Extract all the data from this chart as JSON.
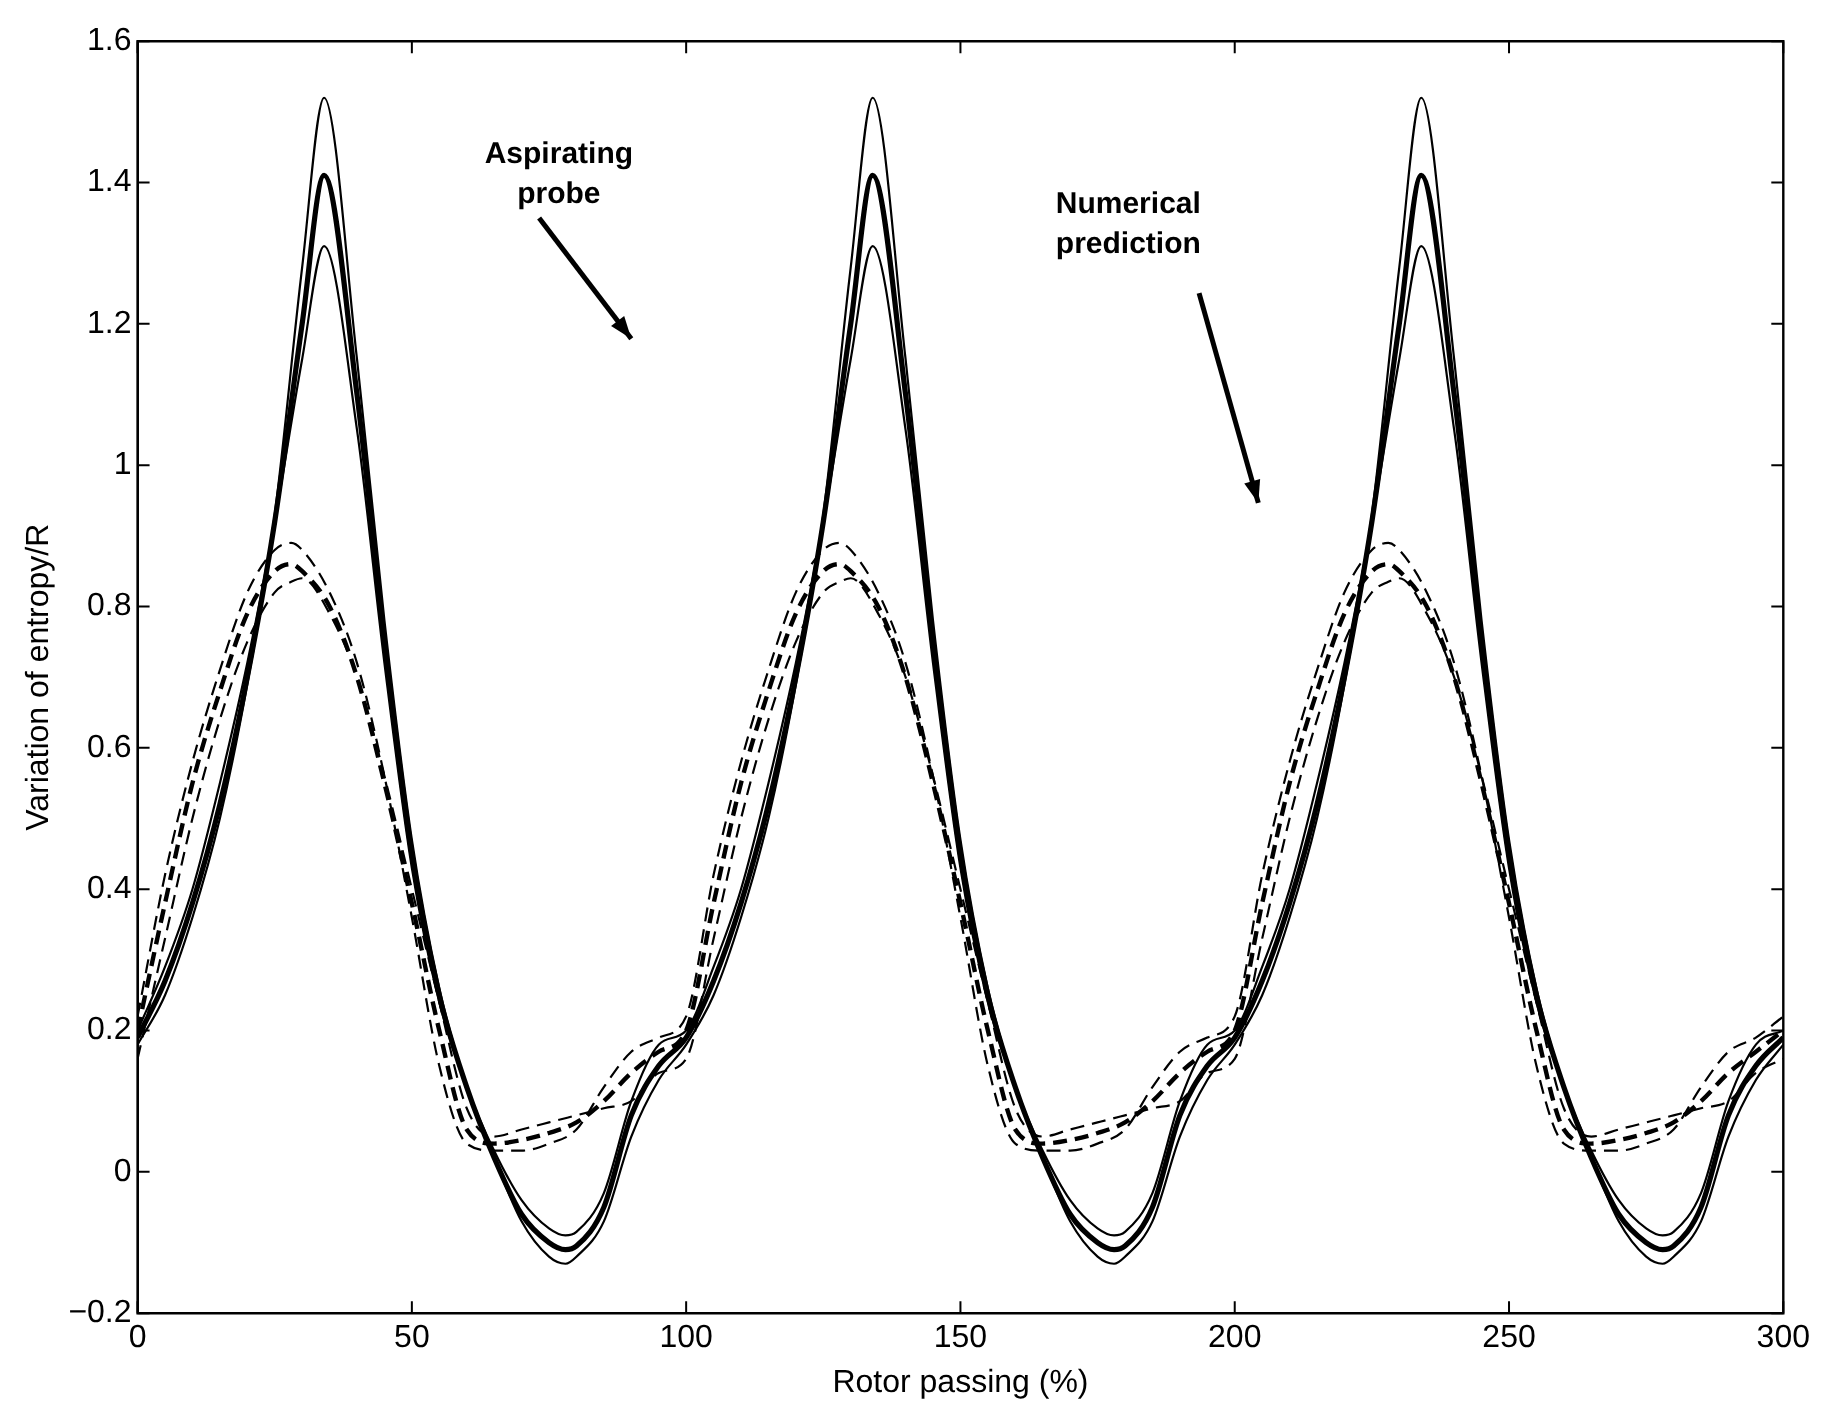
{
  "chart_data": {
    "type": "line",
    "xlabel": "Rotor passing (%)",
    "ylabel": "Variation of entropy/R",
    "xlim": [
      0,
      300
    ],
    "ylim": [
      -0.2,
      1.6
    ],
    "xticks": [
      0,
      50,
      100,
      150,
      200,
      250,
      300
    ],
    "yticks": [
      -0.2,
      0,
      0.2,
      0.4,
      0.6,
      0.8,
      1,
      1.2,
      1.4,
      1.6
    ],
    "grid": false,
    "legend": false,
    "marker": "none",
    "annotations": [
      "Aspirating probe",
      "Numerical prediction"
    ],
    "series": [
      {
        "color": "#000000",
        "line_style": "solid",
        "x": [
          0,
          5,
          10,
          15,
          20,
          25,
          30,
          34,
          40,
          45,
          50,
          55,
          60,
          65,
          70,
          75,
          78,
          80,
          85,
          90,
          95,
          100,
          105,
          110,
          115,
          120,
          125,
          130,
          134,
          140,
          145,
          150,
          155,
          160,
          165,
          170,
          175,
          178,
          180,
          185,
          190,
          195,
          200,
          205,
          210,
          215,
          220,
          225,
          230,
          234,
          240,
          245,
          250,
          255,
          260,
          265,
          270,
          275,
          278,
          280,
          285,
          290,
          295,
          300
        ],
        "values": [
          0.18,
          0.25,
          0.36,
          0.5,
          0.69,
          0.93,
          1.28,
          1.52,
          1.15,
          0.78,
          0.47,
          0.26,
          0.12,
          0.02,
          -0.07,
          -0.12,
          -0.13,
          -0.12,
          -0.07,
          0.05,
          0.13,
          0.18,
          0.25,
          0.36,
          0.5,
          0.69,
          0.93,
          1.28,
          1.52,
          1.15,
          0.78,
          0.47,
          0.26,
          0.12,
          0.02,
          -0.07,
          -0.12,
          -0.13,
          -0.12,
          -0.07,
          0.05,
          0.13,
          0.18,
          0.25,
          0.36,
          0.5,
          0.69,
          0.93,
          1.28,
          1.52,
          1.15,
          0.78,
          0.47,
          0.26,
          0.12,
          0.02,
          -0.07,
          -0.12,
          -0.13,
          -0.12,
          -0.07,
          0.05,
          0.13,
          0.18
        ]
      },
      {
        "color": "#000000",
        "line_style": "solid",
        "x": [
          0,
          5,
          10,
          15,
          20,
          25,
          30,
          34,
          40,
          45,
          50,
          55,
          60,
          65,
          70,
          75,
          78,
          80,
          85,
          90,
          95,
          100,
          105,
          110,
          115,
          120,
          125,
          130,
          134,
          140,
          145,
          150,
          155,
          160,
          165,
          170,
          175,
          178,
          180,
          185,
          190,
          195,
          200,
          205,
          210,
          215,
          220,
          225,
          230,
          234,
          240,
          245,
          250,
          255,
          260,
          265,
          270,
          275,
          278,
          280,
          285,
          290,
          295,
          300
        ],
        "values": [
          0.19,
          0.27,
          0.38,
          0.52,
          0.7,
          0.92,
          1.2,
          1.41,
          1.1,
          0.75,
          0.45,
          0.25,
          0.12,
          0.02,
          -0.06,
          -0.1,
          -0.11,
          -0.105,
          -0.05,
          0.08,
          0.15,
          0.19,
          0.27,
          0.38,
          0.52,
          0.7,
          0.92,
          1.2,
          1.41,
          1.1,
          0.75,
          0.45,
          0.25,
          0.12,
          0.02,
          -0.06,
          -0.1,
          -0.11,
          -0.105,
          -0.05,
          0.08,
          0.15,
          0.19,
          0.27,
          0.38,
          0.52,
          0.7,
          0.92,
          1.2,
          1.41,
          1.1,
          0.75,
          0.45,
          0.25,
          0.12,
          0.02,
          -0.06,
          -0.1,
          -0.11,
          -0.105,
          -0.05,
          0.08,
          0.15,
          0.19
        ]
      },
      {
        "color": "#000000",
        "line_style": "solid",
        "x": [
          0,
          5,
          10,
          15,
          20,
          25,
          30,
          34,
          40,
          45,
          50,
          55,
          60,
          65,
          70,
          75,
          78,
          80,
          85,
          90,
          95,
          100,
          105,
          110,
          115,
          120,
          125,
          130,
          134,
          140,
          145,
          150,
          155,
          160,
          165,
          170,
          175,
          178,
          180,
          185,
          190,
          195,
          200,
          205,
          210,
          215,
          220,
          225,
          230,
          234,
          240,
          245,
          250,
          255,
          260,
          265,
          270,
          275,
          278,
          280,
          285,
          290,
          295,
          300
        ],
        "values": [
          0.2,
          0.29,
          0.4,
          0.55,
          0.72,
          0.92,
          1.15,
          1.31,
          1.05,
          0.72,
          0.43,
          0.24,
          0.12,
          0.03,
          -0.04,
          -0.08,
          -0.09,
          -0.085,
          -0.03,
          0.1,
          0.18,
          0.2,
          0.29,
          0.4,
          0.55,
          0.72,
          0.92,
          1.15,
          1.31,
          1.05,
          0.72,
          0.43,
          0.24,
          0.12,
          0.03,
          -0.04,
          -0.08,
          -0.09,
          -0.085,
          -0.03,
          0.1,
          0.18,
          0.2,
          0.29,
          0.4,
          0.55,
          0.72,
          0.92,
          1.15,
          1.31,
          1.05,
          0.72,
          0.43,
          0.24,
          0.12,
          0.03,
          -0.04,
          -0.08,
          -0.09,
          -0.085,
          -0.03,
          0.1,
          0.18,
          0.2
        ]
      },
      {
        "color": "#000000",
        "line_style": "dashed",
        "x": [
          0,
          5,
          10,
          15,
          20,
          25,
          28,
          30,
          35,
          40,
          45,
          50,
          55,
          60,
          65,
          70,
          75,
          80,
          85,
          90,
          95,
          100,
          105,
          110,
          115,
          120,
          125,
          128,
          130,
          135,
          140,
          145,
          150,
          155,
          160,
          165,
          170,
          175,
          180,
          185,
          190,
          195,
          200,
          205,
          210,
          215,
          220,
          225,
          228,
          230,
          235,
          240,
          245,
          250,
          255,
          260,
          265,
          270,
          275,
          280,
          285,
          290,
          295,
          300
        ],
        "values": [
          0.22,
          0.42,
          0.58,
          0.71,
          0.82,
          0.88,
          0.89,
          0.88,
          0.82,
          0.72,
          0.56,
          0.36,
          0.15,
          0.04,
          0.03,
          0.03,
          0.04,
          0.06,
          0.12,
          0.17,
          0.19,
          0.22,
          0.42,
          0.58,
          0.71,
          0.82,
          0.88,
          0.89,
          0.88,
          0.82,
          0.72,
          0.56,
          0.36,
          0.15,
          0.04,
          0.03,
          0.03,
          0.04,
          0.06,
          0.12,
          0.17,
          0.19,
          0.22,
          0.42,
          0.58,
          0.71,
          0.82,
          0.88,
          0.89,
          0.88,
          0.82,
          0.72,
          0.56,
          0.36,
          0.15,
          0.04,
          0.03,
          0.03,
          0.04,
          0.06,
          0.12,
          0.17,
          0.19,
          0.22
        ]
      },
      {
        "color": "#000000",
        "line_style": "dashed",
        "x": [
          0,
          5,
          10,
          15,
          20,
          25,
          28,
          30,
          35,
          40,
          45,
          50,
          55,
          60,
          65,
          70,
          75,
          80,
          85,
          90,
          95,
          100,
          105,
          110,
          115,
          120,
          125,
          128,
          130,
          135,
          140,
          145,
          150,
          155,
          160,
          165,
          170,
          175,
          180,
          185,
          190,
          195,
          200,
          205,
          210,
          215,
          220,
          225,
          228,
          230,
          235,
          240,
          245,
          250,
          255,
          260,
          265,
          270,
          275,
          280,
          285,
          290,
          295,
          300
        ],
        "values": [
          0.2,
          0.38,
          0.55,
          0.68,
          0.79,
          0.85,
          0.86,
          0.85,
          0.8,
          0.7,
          0.55,
          0.38,
          0.2,
          0.06,
          0.04,
          0.045,
          0.055,
          0.07,
          0.1,
          0.14,
          0.17,
          0.2,
          0.38,
          0.55,
          0.68,
          0.79,
          0.85,
          0.86,
          0.85,
          0.8,
          0.7,
          0.55,
          0.38,
          0.2,
          0.06,
          0.04,
          0.045,
          0.055,
          0.07,
          0.1,
          0.14,
          0.17,
          0.2,
          0.38,
          0.55,
          0.68,
          0.79,
          0.85,
          0.86,
          0.85,
          0.8,
          0.7,
          0.55,
          0.38,
          0.2,
          0.06,
          0.04,
          0.045,
          0.055,
          0.07,
          0.1,
          0.14,
          0.17,
          0.2
        ]
      },
      {
        "color": "#000000",
        "line_style": "dashed",
        "x": [
          0,
          5,
          10,
          15,
          20,
          25,
          28,
          30,
          35,
          40,
          45,
          50,
          55,
          60,
          65,
          70,
          75,
          80,
          85,
          90,
          95,
          100,
          105,
          110,
          115,
          120,
          125,
          128,
          130,
          135,
          140,
          145,
          150,
          155,
          160,
          165,
          170,
          175,
          180,
          185,
          190,
          195,
          200,
          205,
          210,
          215,
          220,
          225,
          228,
          230,
          235,
          240,
          245,
          250,
          255,
          260,
          265,
          270,
          275,
          280,
          285,
          290,
          295,
          300
        ],
        "values": [
          0.16,
          0.33,
          0.5,
          0.64,
          0.75,
          0.82,
          0.835,
          0.84,
          0.79,
          0.7,
          0.56,
          0.4,
          0.24,
          0.09,
          0.05,
          0.06,
          0.07,
          0.08,
          0.09,
          0.1,
          0.14,
          0.16,
          0.33,
          0.5,
          0.64,
          0.75,
          0.82,
          0.835,
          0.84,
          0.79,
          0.7,
          0.56,
          0.4,
          0.24,
          0.09,
          0.05,
          0.06,
          0.07,
          0.08,
          0.09,
          0.1,
          0.14,
          0.16,
          0.33,
          0.5,
          0.64,
          0.75,
          0.82,
          0.835,
          0.84,
          0.79,
          0.7,
          0.56,
          0.4,
          0.24,
          0.09,
          0.05,
          0.06,
          0.07,
          0.08,
          0.09,
          0.1,
          0.14,
          0.16
        ]
      }
    ]
  }
}
